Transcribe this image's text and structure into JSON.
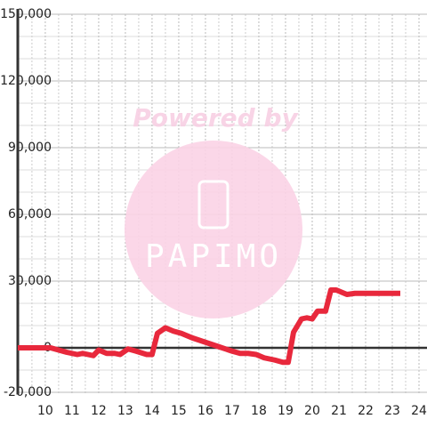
{
  "watermark": {
    "top": "Powered by",
    "logo": "PAPIMO"
  },
  "chart_data": {
    "type": "line",
    "x": [
      8.97,
      10.2,
      10.8,
      11.2,
      11.4,
      11.6,
      11.8,
      12.0,
      12.3,
      12.6,
      12.8,
      13.1,
      13.4,
      13.8,
      14.0,
      14.2,
      14.5,
      14.8,
      15.1,
      15.5,
      16.0,
      16.5,
      17.0,
      17.3,
      17.6,
      17.9,
      18.2,
      18.6,
      18.9,
      19.1,
      19.3,
      19.6,
      19.8,
      20.0,
      20.2,
      20.5,
      20.7,
      20.9,
      21.3,
      21.6,
      22.0,
      23.3
    ],
    "series": [
      {
        "color": "#e8283c",
        "values": [
          0,
          0,
          -2000,
          -3000,
          -2500,
          -3000,
          -3500,
          -1000,
          -2500,
          -2500,
          -3000,
          -500,
          -1500,
          -3000,
          -3000,
          6500,
          9000,
          7500,
          6500,
          4500,
          2500,
          500,
          -1500,
          -2500,
          -2500,
          -3000,
          -4500,
          -5500,
          -6500,
          -6500,
          7000,
          13000,
          13500,
          13000,
          16500,
          16500,
          26000,
          26000,
          24000,
          24500,
          24500,
          24500
        ]
      }
    ],
    "xlim": [
      8.97,
      24.3
    ],
    "ylim": [
      -21000,
      150000
    ],
    "xticks": [
      10,
      11,
      12,
      13,
      14,
      15,
      16,
      17,
      18,
      19,
      20,
      21,
      22,
      23,
      24
    ],
    "yticks": [
      {
        "value": -20000,
        "label": "-20,000"
      },
      0,
      {
        "value": 30000,
        "label": "30,000"
      },
      {
        "value": 60000,
        "label": "60,000"
      },
      {
        "value": 90000,
        "label": "90,000"
      },
      {
        "value": 120000,
        "label": "120,000"
      },
      {
        "value": 150000,
        "label": "150,000"
      }
    ],
    "y_minor_ticks": [
      -10000,
      10000,
      20000,
      40000,
      50000,
      70000,
      80000,
      100000,
      110000,
      130000,
      140000
    ],
    "x_minor_ticks": [
      9.5,
      10.5,
      11.5,
      12.5,
      13.5,
      14.5,
      15.5,
      16.5,
      17.5,
      18.5,
      19.5,
      20.5,
      21.5,
      22.5,
      23.5
    ],
    "grid": true
  }
}
